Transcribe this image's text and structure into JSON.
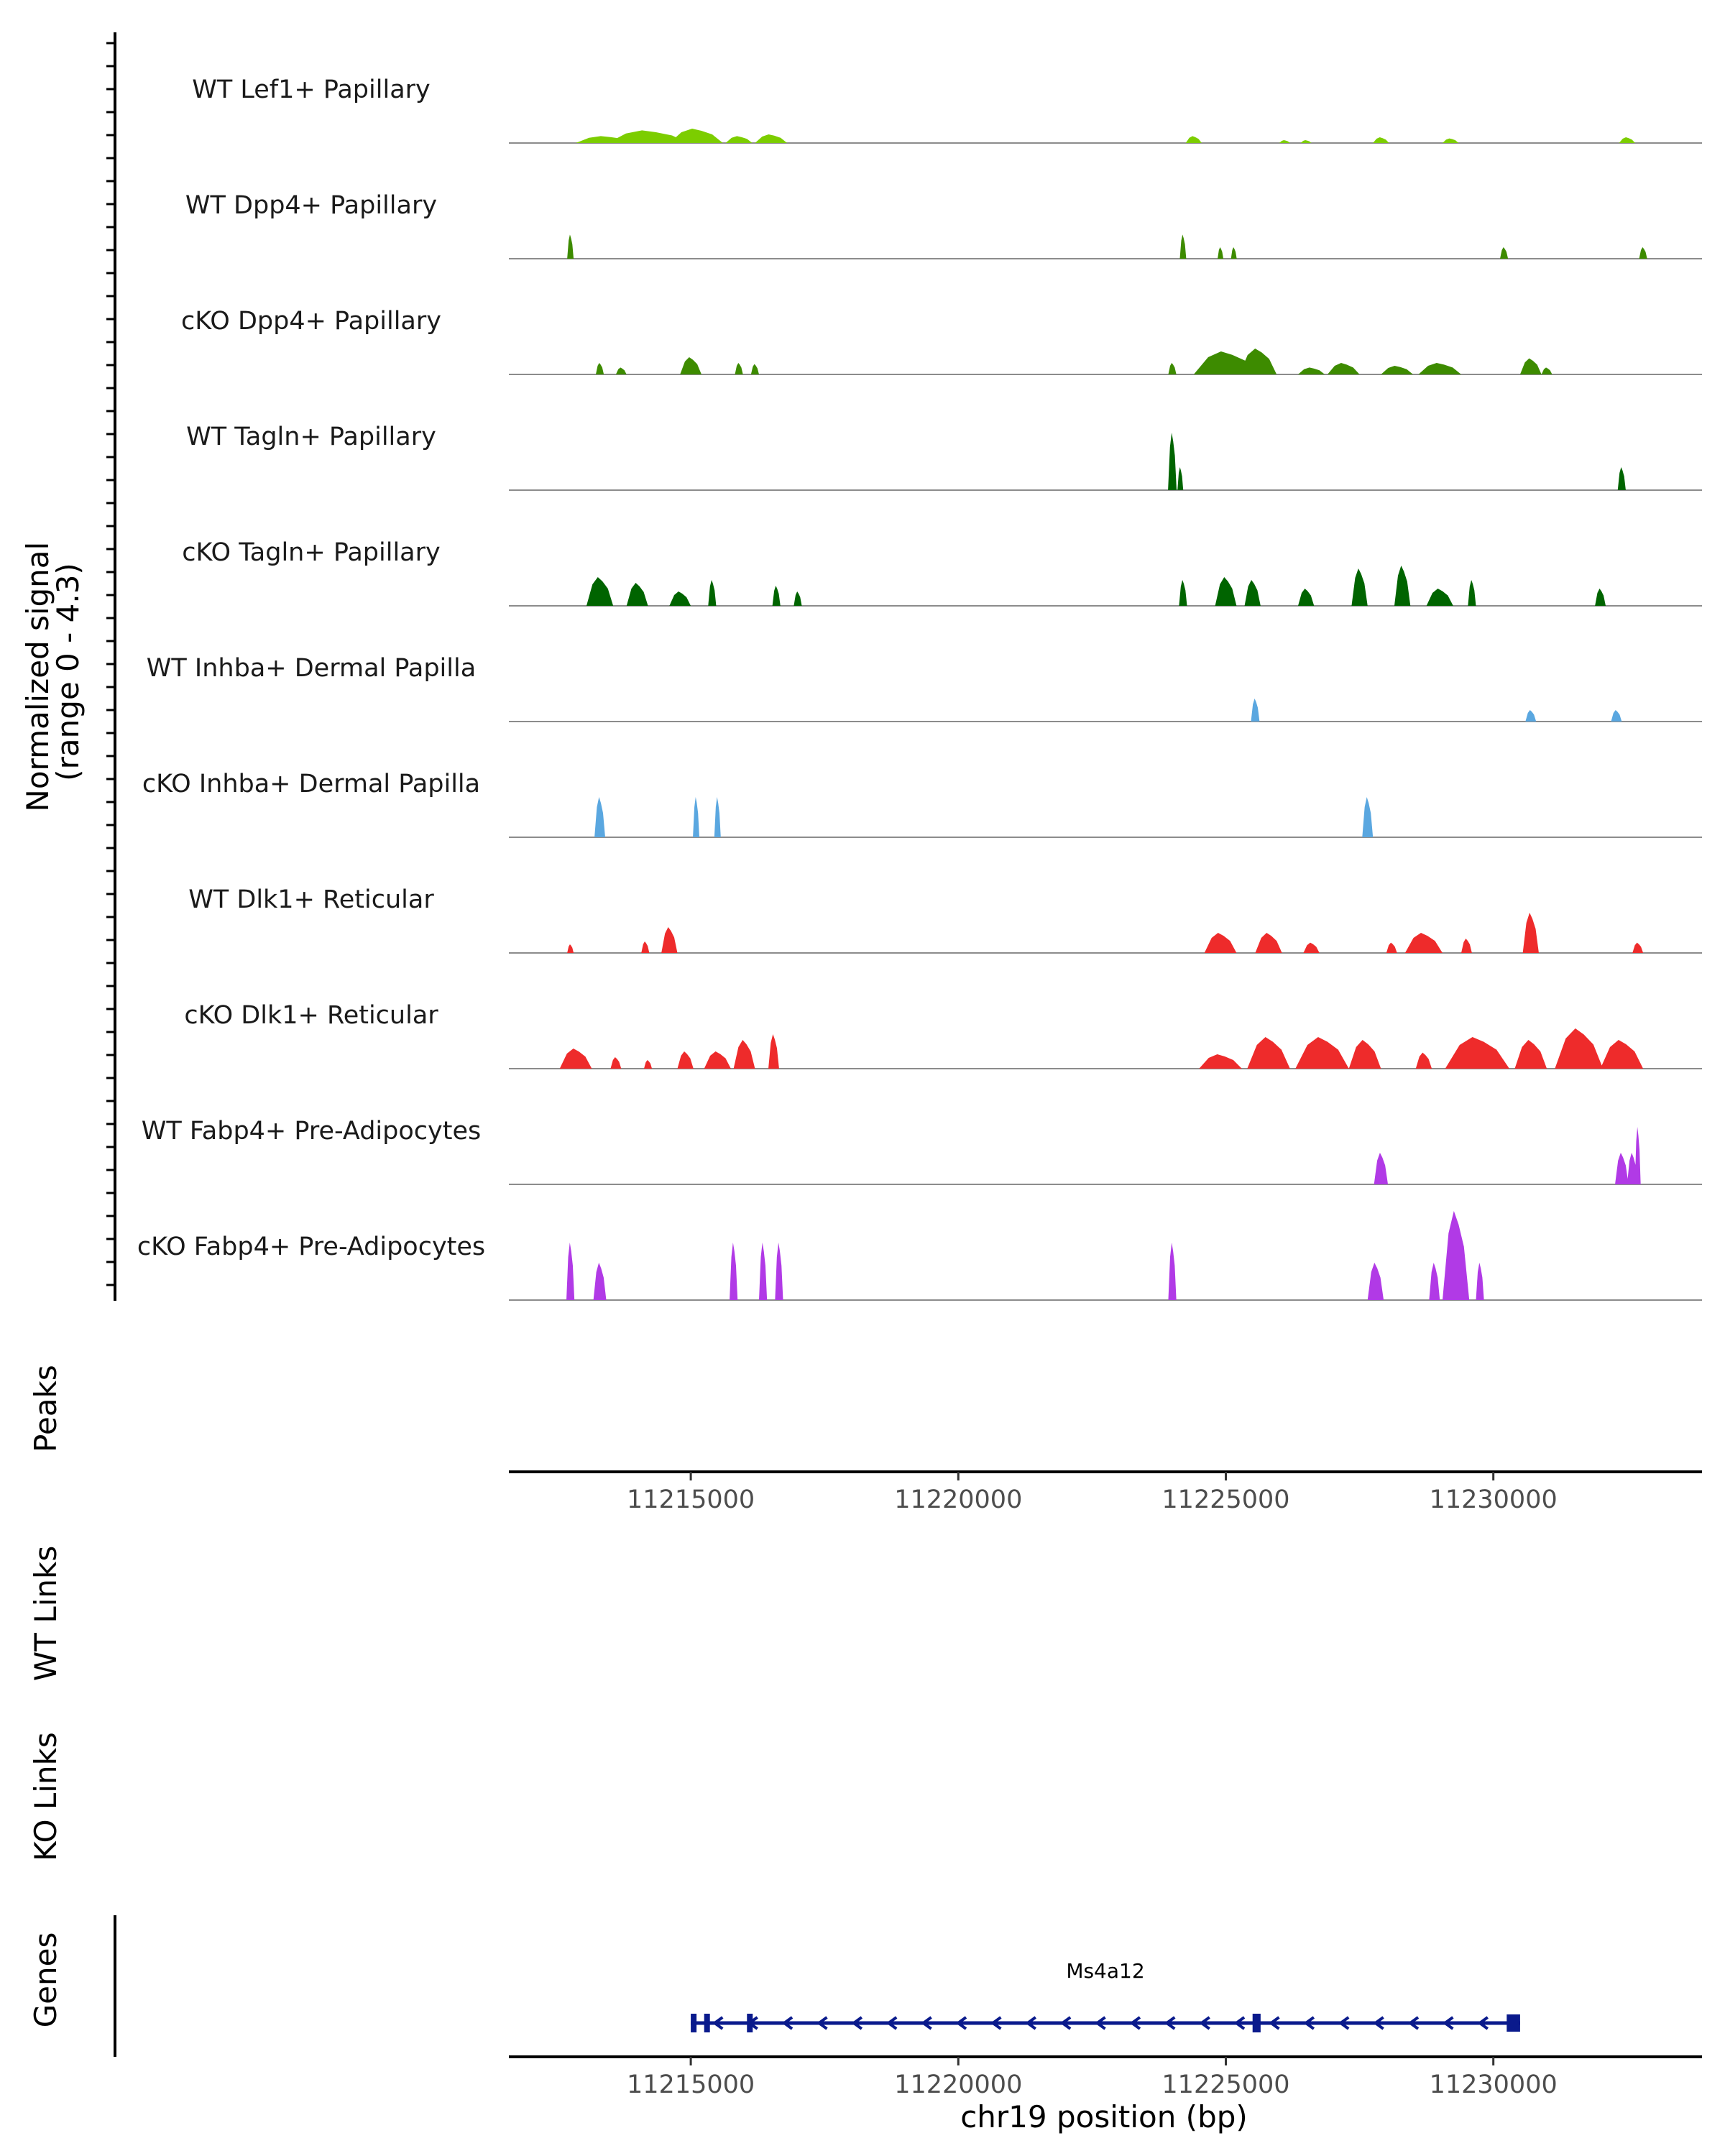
{
  "chart_data": {
    "type": "area",
    "chromosome": "chr19",
    "x_range": [
      11211600,
      11233900
    ],
    "signal_axis_label": [
      "Normalized signal",
      "(range 0 - 4.3)"
    ],
    "signal_range": [
      0,
      4.3
    ],
    "x_ticks": [
      11215000,
      11220000,
      11225000,
      11230000
    ],
    "x_tick_labels": [
      "11215000",
      "11220000",
      "11225000",
      "11230000"
    ],
    "xlabel": "chr19 position (bp)",
    "tracks": [
      {
        "name": "WT Lef1+ Papillary",
        "color": "#7ccd00",
        "peaks": [
          [
            11213400,
            0.12,
            1100
          ],
          [
            11214200,
            0.22,
            1500
          ],
          [
            11215100,
            0.25,
            1000
          ],
          [
            11215900,
            0.12,
            500
          ],
          [
            11216500,
            0.15,
            600
          ],
          [
            11224400,
            0.12,
            300
          ],
          [
            11226100,
            0.05,
            200
          ],
          [
            11226500,
            0.05,
            200
          ],
          [
            11227900,
            0.1,
            300
          ],
          [
            11229200,
            0.08,
            300
          ],
          [
            11232500,
            0.1,
            300
          ]
        ]
      },
      {
        "name": "WT Dpp4+ Papillary",
        "color": "#3d8b00",
        "peaks": [
          [
            11212750,
            0.42,
            120
          ],
          [
            11224200,
            0.42,
            120
          ],
          [
            11224900,
            0.2,
            100
          ],
          [
            11225150,
            0.2,
            100
          ],
          [
            11230200,
            0.2,
            150
          ],
          [
            11232800,
            0.2,
            150
          ]
        ]
      },
      {
        "name": "cKO Dpp4+ Papillary",
        "color": "#3d8b00",
        "peaks": [
          [
            11213300,
            0.2,
            150
          ],
          [
            11213700,
            0.12,
            200
          ],
          [
            11215000,
            0.3,
            400
          ],
          [
            11215900,
            0.2,
            150
          ],
          [
            11216200,
            0.18,
            150
          ],
          [
            11224000,
            0.2,
            150
          ],
          [
            11225000,
            0.4,
            1200
          ],
          [
            11225600,
            0.45,
            700
          ],
          [
            11226600,
            0.12,
            500
          ],
          [
            11227200,
            0.2,
            600
          ],
          [
            11228200,
            0.15,
            600
          ],
          [
            11229000,
            0.2,
            800
          ],
          [
            11230700,
            0.28,
            400
          ],
          [
            11231000,
            0.12,
            200
          ]
        ]
      },
      {
        "name": "WT Tagln+ Papillary",
        "color": "#006400",
        "peaks": [
          [
            11224000,
            1.0,
            160
          ],
          [
            11224150,
            0.4,
            80
          ],
          [
            11232400,
            0.4,
            150
          ]
        ]
      },
      {
        "name": "cKO Tagln+ Papillary",
        "color": "#006400",
        "peaks": [
          [
            11213300,
            0.5,
            500
          ],
          [
            11214000,
            0.4,
            400
          ],
          [
            11214800,
            0.25,
            400
          ],
          [
            11215400,
            0.45,
            150
          ],
          [
            11216600,
            0.35,
            150
          ],
          [
            11217000,
            0.25,
            150
          ],
          [
            11224200,
            0.45,
            150
          ],
          [
            11225000,
            0.5,
            400
          ],
          [
            11225500,
            0.45,
            300
          ],
          [
            11226500,
            0.3,
            300
          ],
          [
            11227500,
            0.65,
            300
          ],
          [
            11228300,
            0.7,
            300
          ],
          [
            11229000,
            0.3,
            500
          ],
          [
            11229600,
            0.45,
            150
          ],
          [
            11232000,
            0.3,
            200
          ]
        ]
      },
      {
        "name": "WT Inhba+ Dermal Papilla",
        "color": "#5aa7e0",
        "peaks": [
          [
            11225550,
            0.4,
            160
          ],
          [
            11230700,
            0.2,
            200
          ],
          [
            11232300,
            0.2,
            200
          ]
        ]
      },
      {
        "name": "cKO Inhba+ Dermal Papilla",
        "color": "#5aa7e0",
        "peaks": [
          [
            11213300,
            0.7,
            200
          ],
          [
            11215100,
            0.7,
            120
          ],
          [
            11215500,
            0.7,
            120
          ],
          [
            11227650,
            0.7,
            200
          ]
        ]
      },
      {
        "name": "WT Dlk1+ Reticular",
        "color": "#ee2b2b",
        "peaks": [
          [
            11212750,
            0.15,
            120
          ],
          [
            11214150,
            0.2,
            150
          ],
          [
            11214600,
            0.45,
            300
          ],
          [
            11224900,
            0.35,
            600
          ],
          [
            11225800,
            0.35,
            500
          ],
          [
            11226600,
            0.18,
            300
          ],
          [
            11228100,
            0.18,
            200
          ],
          [
            11228700,
            0.35,
            700
          ],
          [
            11229500,
            0.25,
            200
          ],
          [
            11230700,
            0.7,
            300
          ],
          [
            11232700,
            0.18,
            200
          ]
        ]
      },
      {
        "name": "cKO Dlk1+ Reticular",
        "color": "#ee2b2b",
        "peaks": [
          [
            11212850,
            0.35,
            600
          ],
          [
            11213600,
            0.2,
            200
          ],
          [
            11214200,
            0.15,
            150
          ],
          [
            11214900,
            0.3,
            300
          ],
          [
            11215500,
            0.3,
            500
          ],
          [
            11216000,
            0.5,
            400
          ],
          [
            11216550,
            0.6,
            200
          ],
          [
            11224900,
            0.25,
            800
          ],
          [
            11225800,
            0.55,
            800
          ],
          [
            11226800,
            0.55,
            1000
          ],
          [
            11227600,
            0.5,
            600
          ],
          [
            11228700,
            0.28,
            300
          ],
          [
            11229700,
            0.55,
            1200
          ],
          [
            11230700,
            0.5,
            600
          ],
          [
            11231600,
            0.7,
            900
          ],
          [
            11232400,
            0.5,
            800
          ]
        ]
      },
      {
        "name": "WT Fabp4+ Pre-Adipocytes",
        "color": "#b13ae6",
        "peaks": [
          [
            11227900,
            0.55,
            260
          ],
          [
            11232400,
            0.55,
            250
          ],
          [
            11232700,
            1.0,
            100
          ],
          [
            11232600,
            0.55,
            200
          ]
        ]
      },
      {
        "name": "cKO Fabp4+ Pre-Adipocytes",
        "color": "#b13ae6",
        "peaks": [
          [
            11212750,
            1.0,
            150
          ],
          [
            11213300,
            0.65,
            240
          ],
          [
            11215800,
            1.0,
            150
          ],
          [
            11216350,
            1.0,
            150
          ],
          [
            11216650,
            1.0,
            150
          ],
          [
            11224000,
            1.0,
            150
          ],
          [
            11227800,
            0.65,
            300
          ],
          [
            11228900,
            0.65,
            200
          ],
          [
            11229300,
            1.55,
            500
          ],
          [
            11229750,
            0.65,
            150
          ]
        ]
      }
    ],
    "peaks_track_label": "Peaks",
    "link_track_labels": [
      "WT Links",
      "KO Links"
    ],
    "genes_track_label": "Genes",
    "gene": {
      "name": "Ms4a12",
      "start": 11215000,
      "end": 11230500,
      "strand": "-",
      "color": "#0a1a8c",
      "exons": [
        [
          11215000,
          11215100
        ],
        [
          11215250,
          11215320
        ],
        [
          11216050,
          11216150
        ],
        [
          11225500,
          11225650
        ],
        [
          11230250,
          11230500
        ]
      ]
    }
  }
}
